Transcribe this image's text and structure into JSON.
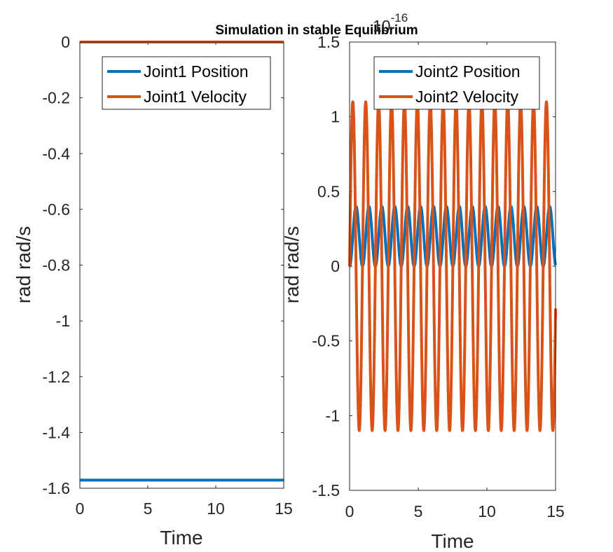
{
  "figure": {
    "title": "Simulation in stable Equilibrium",
    "colors": {
      "position": "#0072BD",
      "velocity": "#D95319",
      "axes": "#262626"
    }
  },
  "chart_data": [
    {
      "type": "line",
      "title": "Simulation in stable Equilibrium",
      "xlabel": "Time",
      "ylabel": "rad rad/s",
      "xlim": [
        0,
        15
      ],
      "ylim": [
        -1.6,
        0
      ],
      "xticks": [
        "0",
        "5",
        "10",
        "15"
      ],
      "yticks": [
        "0",
        "-0.2",
        "-0.4",
        "-0.6",
        "-0.8",
        "-1",
        "-1.2",
        "-1.4",
        "-1.6"
      ],
      "legend_position": "top-right",
      "series": [
        {
          "name": "Joint1 Position",
          "color": "#0072BD",
          "x": [
            0,
            15
          ],
          "y": [
            -1.5708,
            -1.5708
          ]
        },
        {
          "name": "Joint1 Velocity",
          "color": "#D95319",
          "x": [
            0,
            15
          ],
          "y": [
            0,
            0
          ]
        }
      ]
    },
    {
      "type": "line",
      "xlabel": "Time",
      "ylabel": "rad rad/s",
      "exponent_label": "10^-16",
      "exponent_base": "10",
      "exponent_power": "-16",
      "xlim": [
        0,
        15
      ],
      "ylim": [
        -1.5,
        1.5
      ],
      "xticks": [
        "0",
        "5",
        "10",
        "15"
      ],
      "yticks": [
        "1.5",
        "1",
        "0.5",
        "0",
        "-0.5",
        "-1",
        "-1.5"
      ],
      "legend_position": "top-right",
      "series": [
        {
          "name": "Joint2 Position",
          "color": "#0072BD",
          "form": "0.2*(1-cos(2*pi*t/T))",
          "period": 0.94,
          "min": 0,
          "max": 0.4,
          "x_end": 15
        },
        {
          "name": "Joint2 Velocity",
          "color": "#D95319",
          "form": "1.1*sin(2*pi*t/T)",
          "period": 0.94,
          "amplitude": 1.1,
          "x_end": 15,
          "end_value": -0.34
        }
      ]
    }
  ]
}
